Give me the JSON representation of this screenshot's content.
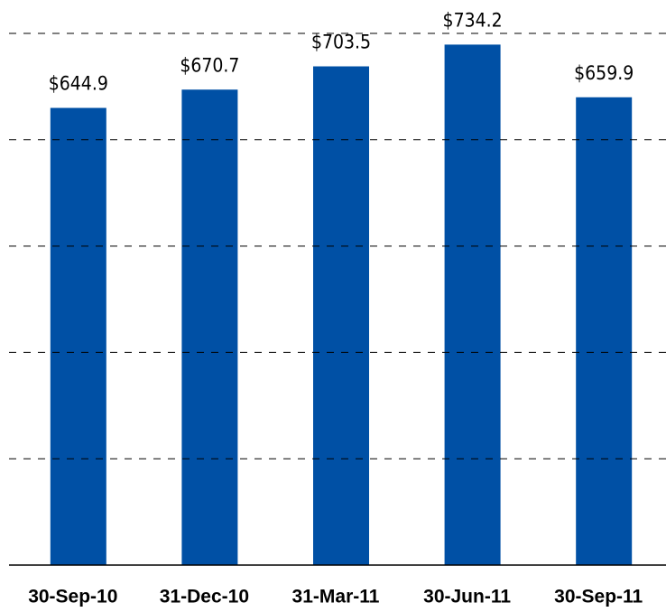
{
  "chart_data": {
    "type": "bar",
    "categories": [
      "30-Sep-10",
      "31-Dec-10",
      "31-Mar-11",
      "30-Jun-11",
      "30-Sep-11"
    ],
    "values": [
      644.9,
      670.7,
      703.5,
      734.2,
      659.9
    ],
    "value_labels": [
      "$644.9",
      "$670.7",
      "$703.5",
      "$734.2",
      "$659.9"
    ],
    "color": "#0050a5",
    "ylim": [
      0,
      750
    ],
    "yticks": [
      0,
      150,
      300,
      450,
      600,
      750
    ],
    "grid": true
  }
}
